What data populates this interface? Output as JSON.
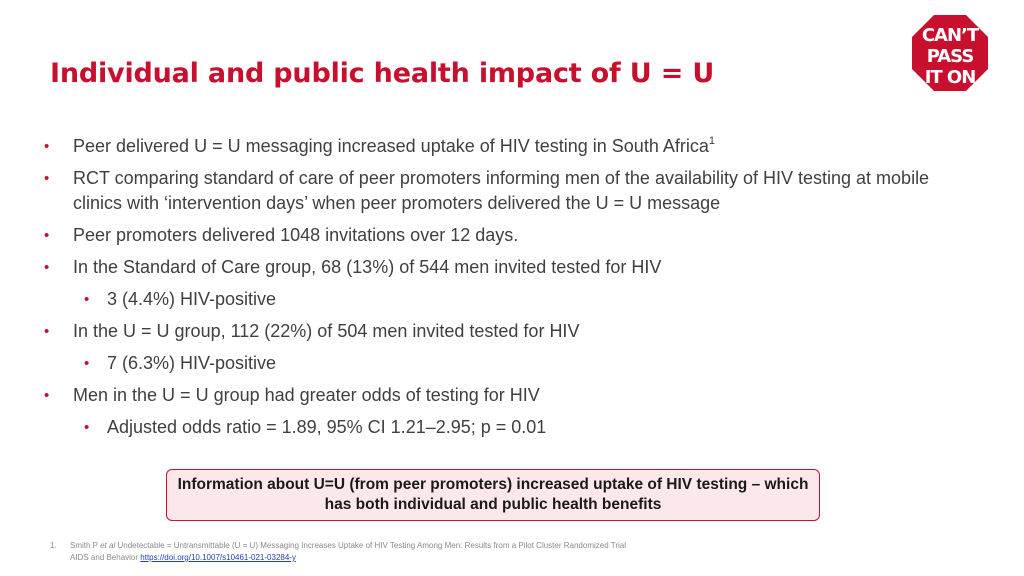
{
  "slide": {
    "title": "Individual and public health impact of U = U",
    "logo_lines": [
      "CAN’T",
      "PASS",
      "IT ON"
    ],
    "bullets": [
      {
        "level": 1,
        "text": "Peer delivered U = U messaging increased uptake of HIV testing in South Africa",
        "sup": "1"
      },
      {
        "level": 1,
        "text": "RCT comparing standard of care of peer promoters informing men of the availability of HIV testing at mobile clinics with ‘intervention days’ when peer promoters delivered the U = U message"
      },
      {
        "level": 1,
        "text": "Peer promoters delivered 1048 invitations over 12 days."
      },
      {
        "level": 1,
        "text": "In the Standard of Care group, 68 (13%) of 544 men invited tested for HIV"
      },
      {
        "level": 2,
        "text": "3 (4.4%) HIV-positive"
      },
      {
        "level": 1,
        "text": "In the U = U group, 112 (22%) of 504 men invited tested for HIV"
      },
      {
        "level": 2,
        "text": "7 (6.3%) HIV-positive"
      },
      {
        "level": 1,
        "text": "Men in the U = U group had greater odds of testing for HIV"
      },
      {
        "level": 2,
        "text": "Adjusted odds ratio = 1.89, 95% CI 1.21–2.95; p = 0.01"
      }
    ],
    "bullet_glyph": "•",
    "callout": "Information about U=U (from peer promoters) increased uptake of HIV testing – which has both individual and public health benefits",
    "footnote": {
      "number": "1.",
      "author": "Smith P",
      "etal": "et al",
      "text": "Undetectable = Untransmittable (U = U) Messaging Increases Uptake of HIV Testing Among Men: Results from a Pilot Cluster Randomized Trial",
      "journal": "AIDS and Behavior",
      "url": "https://doi.org/10.1007/s10461-021-03284-y"
    }
  },
  "colors": {
    "accent": "#c8102e",
    "callout_bg": "#fbe8ea",
    "body_text": "#404040",
    "link": "#1f3fbf"
  }
}
